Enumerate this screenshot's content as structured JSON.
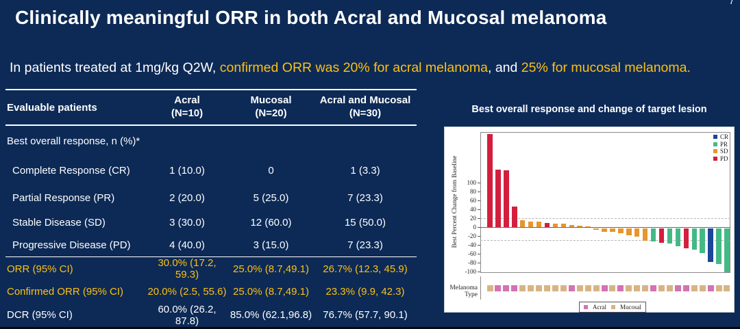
{
  "page_number": "7",
  "title": "Clinically meaningful ORR in both Acral and Mucosal melanoma",
  "subtitle": {
    "part1": "In patients treated at 1mg/kg Q2W, ",
    "part2": "confirmed ORR was 20% for acral melanoma",
    "part3": ", and ",
    "part4": "25% for mucosal melanoma."
  },
  "colors": {
    "background_navy": "#0d2a56",
    "highlight_gold": "#fdc013",
    "white_text": "#ffffff",
    "response": {
      "CR": "#1b4699",
      "PR": "#45b985",
      "SD": "#e6962f",
      "PD": "#d31f3d"
    },
    "melanoma": {
      "Acral": "#d473b0",
      "Mucosal": "#d8b484"
    }
  },
  "table": {
    "columns": [
      {
        "line1": "Evaluable patients",
        "line2": ""
      },
      {
        "line1": "Acral",
        "line2": "(N=10)"
      },
      {
        "line1": "Mucosal",
        "line2": "(N=20)"
      },
      {
        "line1": "Acral and Mucosal",
        "line2": "(N=30)"
      }
    ],
    "rows": [
      {
        "label": "Best overall response, n (%)*",
        "values": [
          "",
          "",
          ""
        ],
        "indent": false,
        "highlight": false,
        "line_above": false
      },
      {
        "label": "Complete Response (CR)",
        "values": [
          "1 (10.0)",
          "0",
          "1 (3.3)"
        ],
        "indent": true,
        "highlight": false,
        "line_above": false
      },
      {
        "label": "Partial Response (PR)",
        "values": [
          "2 (20.0)",
          "5 (25.0)",
          "7 (23.3)"
        ],
        "indent": true,
        "highlight": false,
        "line_above": false
      },
      {
        "label": "Stable Disease (SD)",
        "values": [
          "3 (30.0)",
          "12 (60.0)",
          "15 (50.0)"
        ],
        "indent": true,
        "highlight": false,
        "line_above": false
      },
      {
        "label": "Progressive Disease (PD)",
        "values": [
          "4 (40.0)",
          "3 (15.0)",
          "7 (23.3)"
        ],
        "indent": true,
        "highlight": false,
        "line_above": false
      },
      {
        "label": "ORR (95% CI)",
        "values": [
          "30.0% (17.2, 59.3)",
          "25.0% (8.7,49.1)",
          "26.7% (12.3, 45.9)"
        ],
        "indent": false,
        "highlight": true,
        "line_above": true
      },
      {
        "label": "Confirmed ORR (95% CI)",
        "values": [
          "20.0% (2.5, 55.6)",
          "25.0% (8.7,49.1)",
          "23.3% (9.9, 42.3)"
        ],
        "indent": false,
        "highlight": true,
        "line_above": false
      },
      {
        "label": "DCR (95% CI)",
        "values": [
          "60.0% (26.2, 87.8)",
          "85.0% (62.1,96.8)",
          "76.7% (57.7, 90.1)"
        ],
        "indent": false,
        "highlight": false,
        "line_above": false
      }
    ]
  },
  "chart_data": {
    "type": "bar",
    "title": "Best overall response and change of target lesion",
    "ylabel": "Best Percent Change from Baseline",
    "yticks": [
      100,
      80,
      60,
      40,
      20,
      0,
      -20,
      -40,
      -60,
      -80,
      -100
    ],
    "ylim": [
      -104,
      215
    ],
    "reference_lines": [
      20,
      -30
    ],
    "grid": "off",
    "legend_position": "top-right",
    "legend": [
      {
        "label": "CR",
        "color": "#1b4699"
      },
      {
        "label": "PR",
        "color": "#45b985"
      },
      {
        "label": "SD",
        "color": "#e6962f"
      },
      {
        "label": "PD",
        "color": "#d31f3d"
      }
    ],
    "band_label": "Melanoma Type",
    "band_legend": [
      {
        "label": "Acral",
        "color": "#d473b0"
      },
      {
        "label": "Mucosal",
        "color": "#d8b484"
      }
    ],
    "bars": [
      {
        "value": 210,
        "response": "PD",
        "melanoma": "Mucosal"
      },
      {
        "value": 130,
        "response": "PD",
        "melanoma": "Acral"
      },
      {
        "value": 128,
        "response": "PD",
        "melanoma": "Acral"
      },
      {
        "value": 46,
        "response": "PD",
        "melanoma": "Acral"
      },
      {
        "value": 15,
        "response": "SD",
        "melanoma": "Mucosal"
      },
      {
        "value": 13,
        "response": "SD",
        "melanoma": "Mucosal"
      },
      {
        "value": 12,
        "response": "SD",
        "melanoma": "Mucosal"
      },
      {
        "value": 9,
        "response": "PD",
        "melanoma": "Mucosal"
      },
      {
        "value": 8,
        "response": "SD",
        "melanoma": "Mucosal"
      },
      {
        "value": 7,
        "response": "SD",
        "melanoma": "Mucosal"
      },
      {
        "value": 4,
        "response": "SD",
        "melanoma": "Acral"
      },
      {
        "value": 3,
        "response": "SD",
        "melanoma": "Mucosal"
      },
      {
        "value": 2,
        "response": "SD",
        "melanoma": "Mucosal"
      },
      {
        "value": -4,
        "response": "SD",
        "melanoma": "Mucosal"
      },
      {
        "value": -8,
        "response": "SD",
        "melanoma": "Acral"
      },
      {
        "value": -9,
        "response": "SD",
        "melanoma": "Mucosal"
      },
      {
        "value": -11,
        "response": "SD",
        "melanoma": "Acral"
      },
      {
        "value": -17,
        "response": "SD",
        "melanoma": "Mucosal"
      },
      {
        "value": -19,
        "response": "SD",
        "melanoma": "Mucosal"
      },
      {
        "value": -28,
        "response": "SD",
        "melanoma": "Mucosal"
      },
      {
        "value": -30,
        "response": "PR",
        "melanoma": "Acral"
      },
      {
        "value": -33,
        "response": "PD",
        "melanoma": "Mucosal"
      },
      {
        "value": -35,
        "response": "PR",
        "melanoma": "Mucosal"
      },
      {
        "value": -41,
        "response": "PR",
        "melanoma": "Acral"
      },
      {
        "value": -45,
        "response": "PD",
        "melanoma": "Acral"
      },
      {
        "value": -48,
        "response": "PR",
        "melanoma": "Mucosal"
      },
      {
        "value": -56,
        "response": "PR",
        "melanoma": "Mucosal"
      },
      {
        "value": -76,
        "response": "CR",
        "melanoma": "Acral"
      },
      {
        "value": -81,
        "response": "PR",
        "melanoma": "Mucosal"
      },
      {
        "value": -100,
        "response": "PR",
        "melanoma": "Mucosal"
      }
    ]
  }
}
